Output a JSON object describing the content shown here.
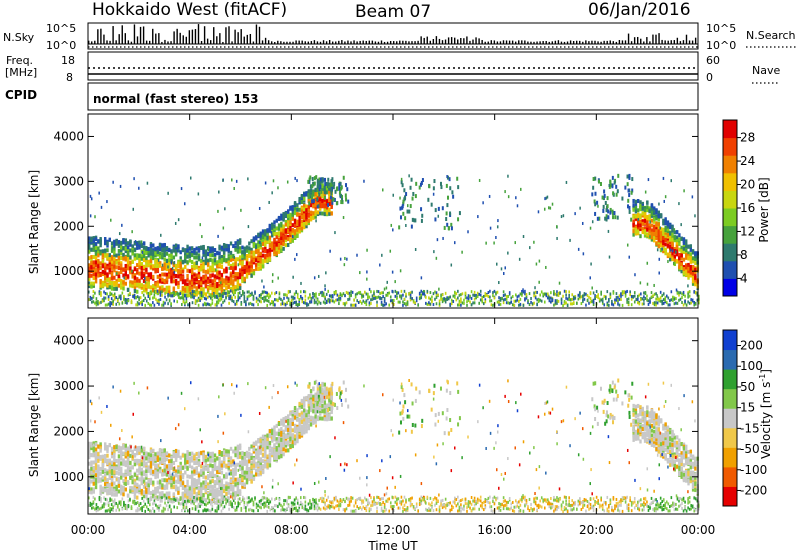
{
  "title": {
    "station": "Hokkaido West (fitACF)",
    "beam": "Beam 07",
    "date": "06/Jan/2016"
  },
  "summary_panel": {
    "nsky_label": "N.Sky",
    "nsky_ticks": [
      "10^5",
      "10^0"
    ],
    "nsearch_label": "N.Search",
    "nsearch_ticks": [
      "10^5",
      "10^0"
    ],
    "freq_label_line1": "Freq.",
    "freq_label_line2": "[MHz]",
    "freq_ticks": [
      "18",
      "8"
    ],
    "nave_label": "Nave",
    "nave_ticks": [
      "60",
      "0"
    ],
    "cpid_label": "CPID",
    "cpid_value": "normal (fast stereo) 153"
  },
  "x_axis": {
    "label": "Time UT",
    "ticks": [
      "00:00",
      "04:00",
      "08:00",
      "12:00",
      "16:00",
      "20:00",
      "00:00"
    ]
  },
  "power_panel": {
    "ylabel": "Slant Range [km]",
    "yticks": [
      "4000",
      "3000",
      "2000",
      "1000"
    ],
    "colorbar_label": "Power [dB]",
    "colorbar_ticks": [
      "28",
      "24",
      "20",
      "16",
      "12",
      "8",
      "4"
    ],
    "colorbar_colors": [
      "#0000e6",
      "#1f4fb0",
      "#2e7a6e",
      "#46a23c",
      "#7ccc22",
      "#c8d610",
      "#f0c000",
      "#f08000",
      "#f04000",
      "#e00000"
    ]
  },
  "velocity_panel": {
    "ylabel": "Slant Range [km]",
    "yticks": [
      "4000",
      "3000",
      "2000",
      "1000"
    ],
    "colorbar_label": "Velocity [m s",
    "colorbar_label_sup": "-1",
    "colorbar_label_end": "]",
    "colorbar_ticks": [
      "200",
      "100",
      "50",
      "15",
      "-15",
      "-50",
      "-100",
      "-200"
    ],
    "colorbar_colors": [
      "#e60000",
      "#f05a00",
      "#f0a000",
      "#f0c84a",
      "#c8c8c8",
      "#82c84a",
      "#2fa02f",
      "#2a6ab0",
      "#1040d0"
    ]
  },
  "chart_data": [
    {
      "type": "heatmap",
      "title": "Power",
      "xlabel": "Time UT",
      "ylabel": "Slant Range [km]",
      "xlim": [
        0,
        24
      ],
      "ylim": [
        180,
        4500
      ],
      "colorbar_range": [
        0,
        30
      ],
      "band_profile": [
        {
          "t": 0.0,
          "range": 1000
        },
        {
          "t": 1.0,
          "range": 950
        },
        {
          "t": 2.0,
          "range": 880
        },
        {
          "t": 3.0,
          "range": 830
        },
        {
          "t": 4.0,
          "range": 780
        },
        {
          "t": 5.0,
          "range": 760
        },
        {
          "t": 6.0,
          "range": 950
        },
        {
          "t": 7.0,
          "range": 1400
        },
        {
          "t": 8.0,
          "range": 1900
        },
        {
          "t": 9.0,
          "range": 2500
        },
        {
          "t": 22.0,
          "range": 2000
        },
        {
          "t": 23.0,
          "range": 1400
        },
        {
          "t": 24.0,
          "range": 800
        }
      ]
    },
    {
      "type": "heatmap",
      "title": "Velocity",
      "xlabel": "Time UT",
      "ylabel": "Slant Range [km]",
      "xlim": [
        0,
        24
      ],
      "ylim": [
        180,
        4500
      ],
      "colorbar_range": [
        -200,
        200
      ],
      "band_profile": [
        {
          "t": 0.0,
          "range": 1000
        },
        {
          "t": 1.0,
          "range": 950
        },
        {
          "t": 2.0,
          "range": 880
        },
        {
          "t": 3.0,
          "range": 830
        },
        {
          "t": 4.0,
          "range": 780
        },
        {
          "t": 5.0,
          "range": 760
        },
        {
          "t": 6.0,
          "range": 950
        },
        {
          "t": 7.0,
          "range": 1400
        },
        {
          "t": 8.0,
          "range": 1900
        },
        {
          "t": 9.0,
          "range": 2500
        },
        {
          "t": 22.0,
          "range": 2000
        },
        {
          "t": 23.0,
          "range": 1400
        },
        {
          "t": 24.0,
          "range": 800
        }
      ]
    }
  ]
}
